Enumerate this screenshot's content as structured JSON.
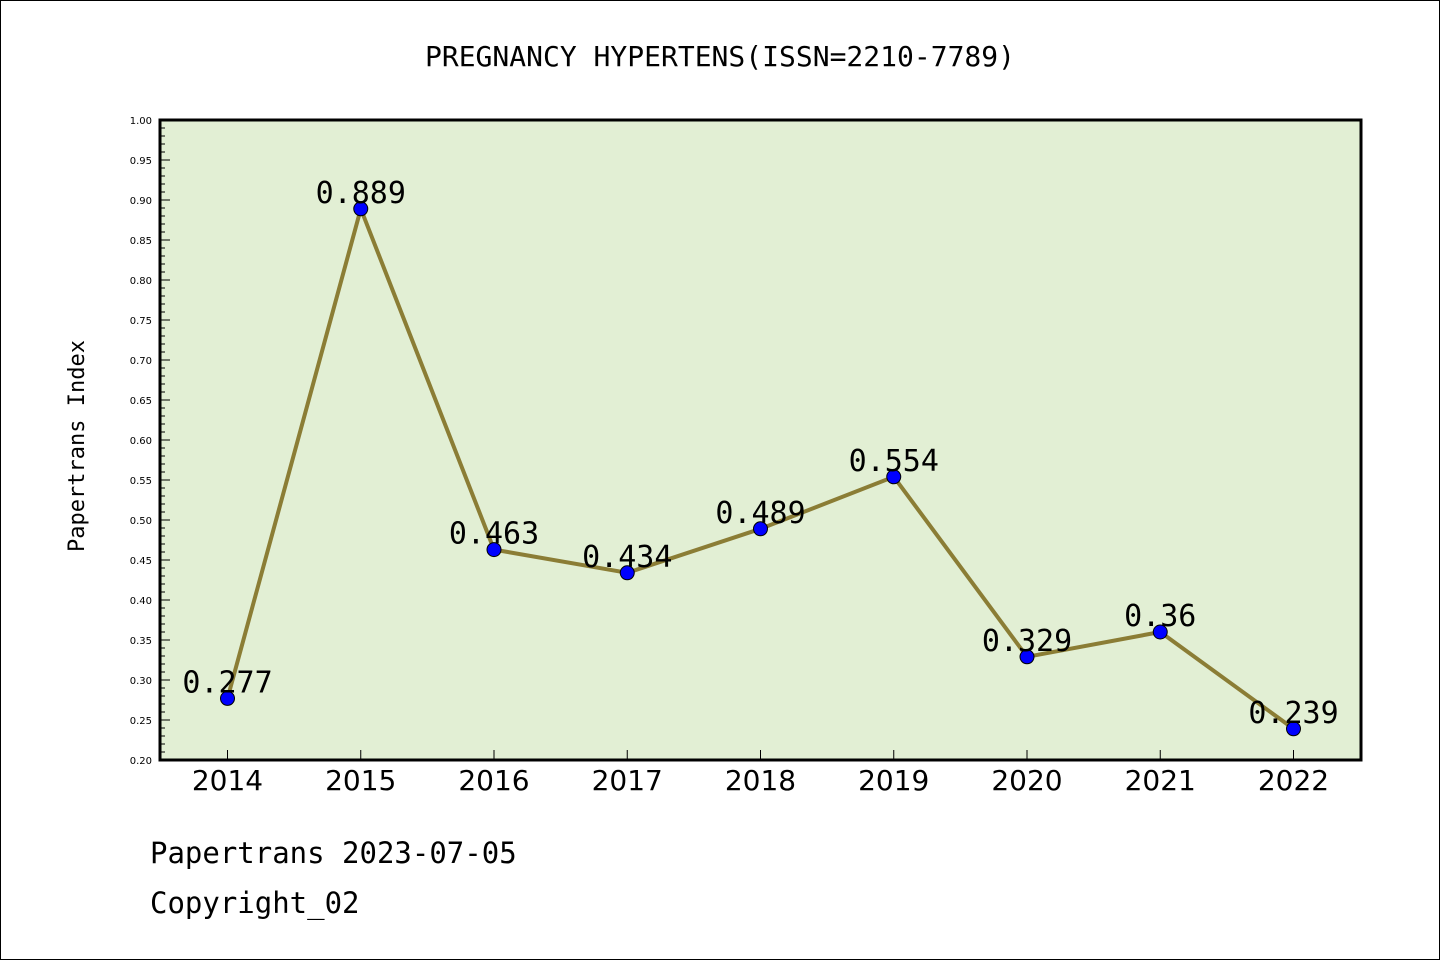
{
  "chart_data": {
    "type": "line",
    "title": "PREGNANCY HYPERTENS(ISSN=2210-7789)",
    "xlabel": "",
    "ylabel": "Papertrans Index",
    "categories": [
      "2014",
      "2015",
      "2016",
      "2017",
      "2018",
      "2019",
      "2020",
      "2021",
      "2022"
    ],
    "series": [
      {
        "values": [
          0.277,
          0.889,
          0.463,
          0.434,
          0.489,
          0.554,
          0.329,
          0.36,
          0.239
        ]
      }
    ],
    "data_labels": [
      "0.277",
      "0.889",
      "0.463",
      "0.434",
      "0.489",
      "0.554",
      "0.329",
      "0.36",
      "0.239"
    ],
    "ylim": [
      0.2,
      1.0
    ],
    "yticks": [
      "0.20",
      "0.25",
      "0.30",
      "0.35",
      "0.40",
      "0.45",
      "0.50",
      "0.55",
      "0.60",
      "0.65",
      "0.70",
      "0.75",
      "0.80",
      "0.85",
      "0.90",
      "0.95",
      "1.00"
    ],
    "colors": {
      "plot_bg": "#e2efd4",
      "line": "#8b7d35",
      "marker": "#0000ff"
    },
    "grid": false,
    "legend": "none"
  },
  "footer": {
    "line1": "Papertrans 2023-07-05",
    "line2": "Copyright_02"
  }
}
